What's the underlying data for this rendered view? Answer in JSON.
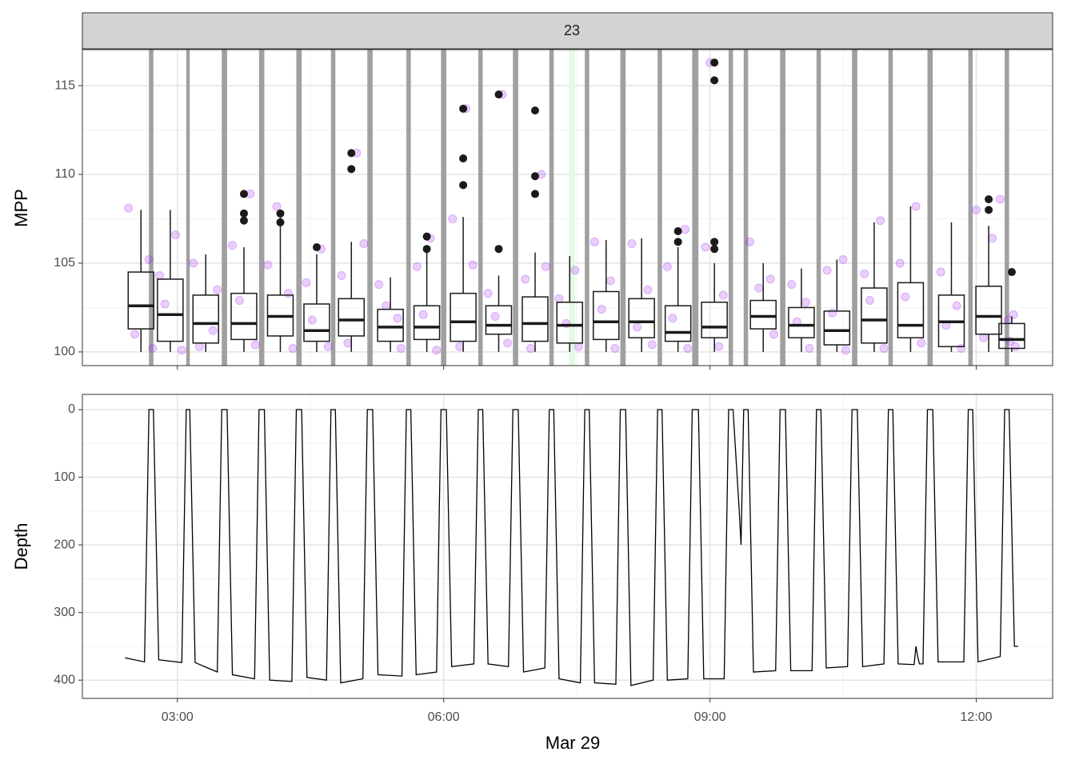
{
  "chart_data": [
    {
      "type": "box",
      "facet": "23",
      "y_label": "MPP",
      "xlim": [
        1.93,
        12.86
      ],
      "xticks": [
        3,
        6,
        9,
        12
      ],
      "x_tick_labels": false,
      "minor_xticks": [
        4.5,
        7.5,
        10.5
      ],
      "ylim": [
        99.23,
        117.03
      ],
      "yticks": [
        100,
        105,
        110,
        115
      ],
      "minor_yticks": [
        102.5,
        107.5,
        112.5
      ],
      "grid": true,
      "shaded_color": "#a0a0a0",
      "shaded": [
        [
          2.68,
          2.73
        ],
        [
          3.1,
          3.14
        ],
        [
          3.5,
          3.56
        ],
        [
          3.92,
          3.98
        ],
        [
          4.34,
          4.4
        ],
        [
          4.73,
          4.78
        ],
        [
          5.14,
          5.2
        ],
        [
          5.58,
          5.63
        ],
        [
          5.97,
          6.03
        ],
        [
          6.39,
          6.44
        ],
        [
          6.78,
          6.84
        ],
        [
          7.19,
          7.24
        ],
        [
          7.59,
          7.64
        ],
        [
          7.99,
          8.05
        ],
        [
          8.41,
          8.46
        ],
        [
          8.8,
          8.87
        ],
        [
          9.21,
          9.26
        ],
        [
          9.38,
          9.43
        ],
        [
          9.79,
          9.85
        ],
        [
          10.2,
          10.25
        ],
        [
          10.6,
          10.66
        ],
        [
          11.01,
          11.06
        ],
        [
          11.45,
          11.51
        ],
        [
          11.91,
          11.96
        ],
        [
          12.32,
          12.37
        ]
      ],
      "highlight": [
        7.41,
        7.48
      ],
      "highlight_color": "#e3fbe3",
      "box_color": "#1a1a1a",
      "outlier_color": "#1a1a1a",
      "boxes": [
        {
          "x": 2.59,
          "low": 100.0,
          "q1": 101.3,
          "median": 102.6,
          "q3": 104.5,
          "high": 108.0,
          "outliers": []
        },
        {
          "x": 2.92,
          "low": 100.0,
          "q1": 100.6,
          "median": 102.1,
          "q3": 104.1,
          "high": 108.0,
          "outliers": []
        },
        {
          "x": 3.32,
          "low": 100.0,
          "q1": 100.5,
          "median": 101.6,
          "q3": 103.2,
          "high": 105.5,
          "outliers": []
        },
        {
          "x": 3.75,
          "low": 100.0,
          "q1": 100.7,
          "median": 101.6,
          "q3": 103.3,
          "high": 105.9,
          "outliers": [
            108.9,
            107.8,
            107.4
          ]
        },
        {
          "x": 4.16,
          "low": 100.0,
          "q1": 100.9,
          "median": 102.0,
          "q3": 103.2,
          "high": 108.0,
          "outliers": [
            107.8,
            107.3
          ]
        },
        {
          "x": 4.57,
          "low": 100.0,
          "q1": 100.6,
          "median": 101.2,
          "q3": 102.7,
          "high": 105.5,
          "outliers": [
            105.9
          ]
        },
        {
          "x": 4.96,
          "low": 100.0,
          "q1": 100.9,
          "median": 101.8,
          "q3": 103.0,
          "high": 106.2,
          "outliers": [
            111.2,
            110.3
          ]
        },
        {
          "x": 5.4,
          "low": 100.0,
          "q1": 100.6,
          "median": 101.4,
          "q3": 102.4,
          "high": 104.2,
          "outliers": []
        },
        {
          "x": 5.81,
          "low": 100.0,
          "q1": 100.7,
          "median": 101.4,
          "q3": 102.6,
          "high": 105.9,
          "outliers": [
            106.5,
            105.8
          ]
        },
        {
          "x": 6.22,
          "low": 100.0,
          "q1": 100.6,
          "median": 101.7,
          "q3": 103.3,
          "high": 107.6,
          "outliers": [
            113.7,
            110.9,
            109.4
          ]
        },
        {
          "x": 6.62,
          "low": 100.0,
          "q1": 101.0,
          "median": 101.5,
          "q3": 102.6,
          "high": 104.3,
          "outliers": [
            114.5,
            105.8
          ]
        },
        {
          "x": 7.03,
          "low": 100.0,
          "q1": 100.6,
          "median": 101.6,
          "q3": 103.1,
          "high": 105.6,
          "outliers": [
            113.6,
            109.9,
            108.9
          ]
        },
        {
          "x": 7.42,
          "low": 100.0,
          "q1": 100.5,
          "median": 101.5,
          "q3": 102.8,
          "high": 105.4,
          "outliers": []
        },
        {
          "x": 7.83,
          "low": 100.0,
          "q1": 100.7,
          "median": 101.7,
          "q3": 103.4,
          "high": 106.3,
          "outliers": []
        },
        {
          "x": 8.23,
          "low": 100.0,
          "q1": 100.8,
          "median": 101.7,
          "q3": 103.0,
          "high": 106.4,
          "outliers": []
        },
        {
          "x": 8.64,
          "low": 100.0,
          "q1": 100.6,
          "median": 101.1,
          "q3": 102.6,
          "high": 105.9,
          "outliers": [
            106.8,
            106.2
          ]
        },
        {
          "x": 9.05,
          "low": 100.0,
          "q1": 100.8,
          "median": 101.4,
          "q3": 102.8,
          "high": 105.0,
          "outliers": [
            116.3,
            115.3,
            106.2,
            105.8
          ]
        },
        {
          "x": 9.6,
          "low": 100.0,
          "q1": 101.3,
          "median": 102.0,
          "q3": 102.9,
          "high": 105.0,
          "outliers": []
        },
        {
          "x": 10.03,
          "low": 100.0,
          "q1": 100.8,
          "median": 101.5,
          "q3": 102.5,
          "high": 104.7,
          "outliers": []
        },
        {
          "x": 10.43,
          "low": 100.0,
          "q1": 100.4,
          "median": 101.2,
          "q3": 102.3,
          "high": 105.2,
          "outliers": []
        },
        {
          "x": 10.85,
          "low": 100.0,
          "q1": 100.5,
          "median": 101.8,
          "q3": 103.6,
          "high": 107.3,
          "outliers": []
        },
        {
          "x": 11.26,
          "low": 100.0,
          "q1": 100.8,
          "median": 101.5,
          "q3": 103.9,
          "high": 108.2,
          "outliers": []
        },
        {
          "x": 11.72,
          "low": 100.0,
          "q1": 100.3,
          "median": 101.7,
          "q3": 103.2,
          "high": 107.3,
          "outliers": []
        },
        {
          "x": 12.14,
          "low": 100.0,
          "q1": 101.0,
          "median": 102.0,
          "q3": 103.7,
          "high": 107.1,
          "outliers": [
            108.6,
            108.0
          ]
        },
        {
          "x": 12.4,
          "low": 100.0,
          "q1": 100.2,
          "median": 100.7,
          "q3": 101.6,
          "high": 102.0,
          "outliers": [
            104.5
          ]
        }
      ],
      "points": {
        "color": "#a020f0",
        "x": [
          2.45,
          2.52,
          2.68,
          2.72,
          2.8,
          2.98,
          3.05,
          2.86,
          3.18,
          3.25,
          3.45,
          3.4,
          3.62,
          3.82,
          3.88,
          3.7,
          4.02,
          4.12,
          4.3,
          4.25,
          4.45,
          4.62,
          4.7,
          4.52,
          4.85,
          5.02,
          5.1,
          4.92,
          5.27,
          5.48,
          5.52,
          5.35,
          5.7,
          5.85,
          5.92,
          5.77,
          6.1,
          6.25,
          6.33,
          6.18,
          6.5,
          6.66,
          6.72,
          6.58,
          6.92,
          7.1,
          7.15,
          6.98,
          7.3,
          7.48,
          7.52,
          7.38,
          7.7,
          7.88,
          7.93,
          7.78,
          8.12,
          8.3,
          8.35,
          8.18,
          8.52,
          8.72,
          8.75,
          8.58,
          8.95,
          9.0,
          9.15,
          9.1,
          9.45,
          9.55,
          9.72,
          9.68,
          9.92,
          10.08,
          10.12,
          9.98,
          10.32,
          10.5,
          10.53,
          10.38,
          10.74,
          10.92,
          10.96,
          10.8,
          11.14,
          11.32,
          11.38,
          11.2,
          11.6,
          11.78,
          11.83,
          11.66,
          12.0,
          12.18,
          12.27,
          12.08,
          12.36,
          12.44,
          12.42,
          12.38
        ],
        "y": [
          108.1,
          101.0,
          105.2,
          100.2,
          104.3,
          106.6,
          100.1,
          102.7,
          105.0,
          100.3,
          103.5,
          101.2,
          106.0,
          108.9,
          100.4,
          102.9,
          104.9,
          108.2,
          100.2,
          103.3,
          103.9,
          105.8,
          100.3,
          101.8,
          104.3,
          111.2,
          106.1,
          100.5,
          103.8,
          101.9,
          100.2,
          102.6,
          104.8,
          106.4,
          100.1,
          102.1,
          107.5,
          113.7,
          104.9,
          100.3,
          103.3,
          114.5,
          100.5,
          102.0,
          104.1,
          110.0,
          104.8,
          100.2,
          103.0,
          104.6,
          100.3,
          101.6,
          106.2,
          104.0,
          100.2,
          102.4,
          106.1,
          103.5,
          100.4,
          101.4,
          104.8,
          106.9,
          100.2,
          101.9,
          105.9,
          116.3,
          103.2,
          100.3,
          106.2,
          103.6,
          101.0,
          104.1,
          103.8,
          102.8,
          100.2,
          101.7,
          104.6,
          105.2,
          100.1,
          102.2,
          104.4,
          107.4,
          100.2,
          102.9,
          105.0,
          108.2,
          100.5,
          103.1,
          104.5,
          102.6,
          100.2,
          101.5,
          108.0,
          106.4,
          108.6,
          100.8,
          101.8,
          100.3,
          102.1,
          100.6
        ]
      }
    },
    {
      "type": "line",
      "y_label": "Depth",
      "x_label": "Mar 29",
      "xlim": [
        1.93,
        12.86
      ],
      "xticks": [
        {
          "value": 3,
          "label": "03:00"
        },
        {
          "value": 6,
          "label": "06:00"
        },
        {
          "value": 9,
          "label": "09:00"
        },
        {
          "value": 12,
          "label": "12:00"
        }
      ],
      "minor_xticks": [
        4.5,
        7.5,
        10.5
      ],
      "ylim": [
        427,
        -22.5
      ],
      "yticks": [
        0,
        100,
        200,
        300,
        400
      ],
      "minor_yticks": [
        50,
        150,
        250,
        350
      ],
      "grid": true,
      "color": "#000000",
      "x": [
        2.41,
        2.63,
        2.68,
        2.73,
        2.79,
        3.05,
        3.1,
        3.14,
        3.2,
        3.45,
        3.5,
        3.56,
        3.62,
        3.87,
        3.92,
        3.98,
        4.04,
        4.29,
        4.34,
        4.4,
        4.46,
        4.68,
        4.73,
        4.78,
        4.84,
        5.09,
        5.14,
        5.2,
        5.26,
        5.53,
        5.58,
        5.63,
        5.69,
        5.92,
        5.97,
        6.03,
        6.09,
        6.34,
        6.39,
        6.44,
        6.5,
        6.73,
        6.78,
        6.84,
        6.9,
        7.14,
        7.19,
        7.24,
        7.3,
        7.54,
        7.59,
        7.64,
        7.7,
        7.94,
        7.99,
        8.05,
        8.11,
        8.36,
        8.41,
        8.46,
        8.52,
        8.75,
        8.8,
        8.87,
        8.93,
        9.16,
        9.21,
        9.26,
        9.33,
        9.35,
        9.38,
        9.43,
        9.49,
        9.74,
        9.79,
        9.85,
        9.91,
        10.15,
        10.2,
        10.25,
        10.31,
        10.55,
        10.6,
        10.66,
        10.72,
        10.96,
        11.01,
        11.06,
        11.12,
        11.3,
        11.32,
        11.34,
        11.36,
        11.4,
        11.45,
        11.51,
        11.57,
        11.86,
        11.91,
        11.96,
        12.02,
        12.27,
        12.32,
        12.37,
        12.43,
        12.47
      ],
      "values": [
        367,
        373,
        0,
        0,
        370,
        374,
        0,
        0,
        374,
        388,
        0,
        0,
        392,
        398,
        0,
        0,
        400,
        402,
        0,
        0,
        396,
        400,
        0,
        0,
        404,
        398,
        0,
        0,
        392,
        394,
        0,
        0,
        392,
        388,
        0,
        0,
        380,
        376,
        0,
        0,
        376,
        380,
        0,
        0,
        388,
        382,
        0,
        0,
        398,
        404,
        0,
        0,
        404,
        406,
        0,
        0,
        408,
        400,
        0,
        0,
        400,
        398,
        0,
        0,
        398,
        398,
        0,
        0,
        150,
        200,
        0,
        0,
        388,
        386,
        0,
        0,
        386,
        386,
        0,
        0,
        382,
        380,
        0,
        0,
        380,
        376,
        0,
        0,
        376,
        377,
        350,
        365,
        376,
        376,
        0,
        0,
        373,
        373,
        0,
        0,
        373,
        365,
        0,
        0,
        350,
        350
      ]
    }
  ]
}
